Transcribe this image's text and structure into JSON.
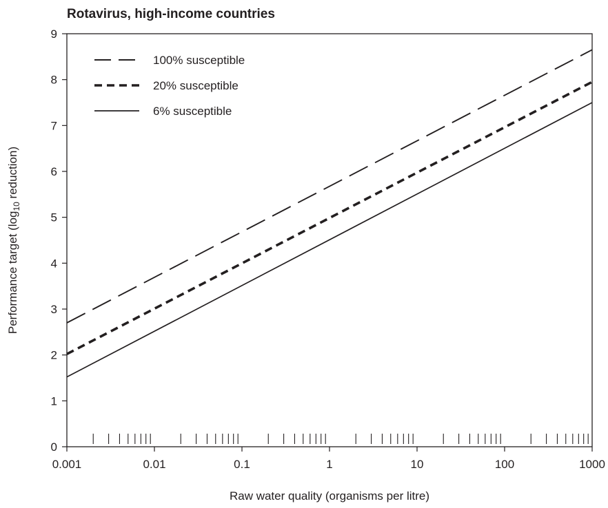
{
  "chart_data": {
    "type": "line",
    "title": "Rotavirus, high-income countries",
    "xlabel": "Raw water quality (organisms per litre)",
    "ylabel": {
      "prefix": "Performance target (log",
      "subscript": "10",
      "suffix": " reduction)"
    },
    "x_scale": "log",
    "xlim": [
      0.001,
      1000
    ],
    "ylim": [
      0,
      9
    ],
    "x_ticks": [
      "0.001",
      "0.01",
      "0.1",
      "1",
      "10",
      "100",
      "1000"
    ],
    "y_ticks": [
      "0",
      "1",
      "2",
      "3",
      "4",
      "5",
      "6",
      "7",
      "8",
      "9"
    ],
    "grid": false,
    "legend_position": "top-left",
    "series": [
      {
        "name": "100% susceptible",
        "style": "long-dash",
        "x": [
          0.001,
          1000
        ],
        "y": [
          2.7,
          8.65
        ]
      },
      {
        "name": "20% susceptible",
        "style": "short-dash",
        "x": [
          0.001,
          1000
        ],
        "y": [
          2.02,
          7.95
        ]
      },
      {
        "name": "6% susceptible",
        "style": "solid",
        "x": [
          0.001,
          1000
        ],
        "y": [
          1.52,
          7.5
        ]
      }
    ],
    "colors": {
      "line": "#231f20",
      "axis": "#231f20"
    }
  }
}
